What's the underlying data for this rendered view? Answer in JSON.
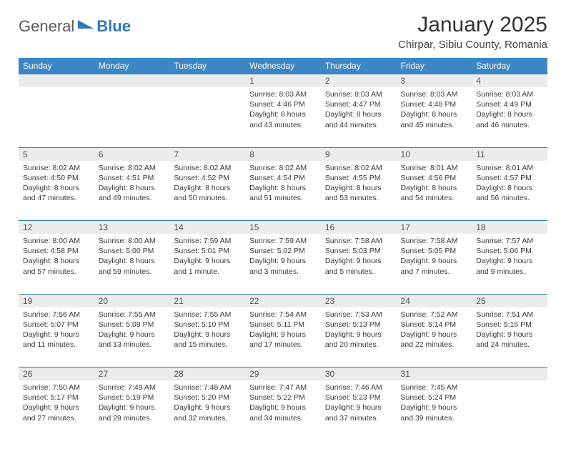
{
  "brand": {
    "part1": "General",
    "part2": "Blue"
  },
  "header": {
    "month_title": "January 2025",
    "location": "Chirpar, Sibiu County, Romania"
  },
  "style": {
    "header_bg": "#3d86c6",
    "header_text": "#ffffff",
    "rule_color": "#2f78b7",
    "daynum_bg": "#ececec",
    "body_text": "#3a3a3a",
    "title_fontsize": 30,
    "location_fontsize": 15,
    "dayhead_fontsize": 12,
    "cell_fontsize": 10.5
  },
  "day_names": [
    "Sunday",
    "Monday",
    "Tuesday",
    "Wednesday",
    "Thursday",
    "Friday",
    "Saturday"
  ],
  "weeks": [
    [
      null,
      null,
      null,
      {
        "n": "1",
        "sr": "8:03 AM",
        "ss": "4:46 PM",
        "dl": "8 hours and 43 minutes."
      },
      {
        "n": "2",
        "sr": "8:03 AM",
        "ss": "4:47 PM",
        "dl": "8 hours and 44 minutes."
      },
      {
        "n": "3",
        "sr": "8:03 AM",
        "ss": "4:48 PM",
        "dl": "8 hours and 45 minutes."
      },
      {
        "n": "4",
        "sr": "8:03 AM",
        "ss": "4:49 PM",
        "dl": "8 hours and 46 minutes."
      }
    ],
    [
      {
        "n": "5",
        "sr": "8:02 AM",
        "ss": "4:50 PM",
        "dl": "8 hours and 47 minutes."
      },
      {
        "n": "6",
        "sr": "8:02 AM",
        "ss": "4:51 PM",
        "dl": "8 hours and 49 minutes."
      },
      {
        "n": "7",
        "sr": "8:02 AM",
        "ss": "4:52 PM",
        "dl": "8 hours and 50 minutes."
      },
      {
        "n": "8",
        "sr": "8:02 AM",
        "ss": "4:54 PM",
        "dl": "8 hours and 51 minutes."
      },
      {
        "n": "9",
        "sr": "8:02 AM",
        "ss": "4:55 PM",
        "dl": "8 hours and 53 minutes."
      },
      {
        "n": "10",
        "sr": "8:01 AM",
        "ss": "4:56 PM",
        "dl": "8 hours and 54 minutes."
      },
      {
        "n": "11",
        "sr": "8:01 AM",
        "ss": "4:57 PM",
        "dl": "8 hours and 56 minutes."
      }
    ],
    [
      {
        "n": "12",
        "sr": "8:00 AM",
        "ss": "4:58 PM",
        "dl": "8 hours and 57 minutes."
      },
      {
        "n": "13",
        "sr": "8:00 AM",
        "ss": "5:00 PM",
        "dl": "8 hours and 59 minutes."
      },
      {
        "n": "14",
        "sr": "7:59 AM",
        "ss": "5:01 PM",
        "dl": "9 hours and 1 minute."
      },
      {
        "n": "15",
        "sr": "7:59 AM",
        "ss": "5:02 PM",
        "dl": "9 hours and 3 minutes."
      },
      {
        "n": "16",
        "sr": "7:58 AM",
        "ss": "5:03 PM",
        "dl": "9 hours and 5 minutes."
      },
      {
        "n": "17",
        "sr": "7:58 AM",
        "ss": "5:05 PM",
        "dl": "9 hours and 7 minutes."
      },
      {
        "n": "18",
        "sr": "7:57 AM",
        "ss": "5:06 PM",
        "dl": "9 hours and 9 minutes."
      }
    ],
    [
      {
        "n": "19",
        "sr": "7:56 AM",
        "ss": "5:07 PM",
        "dl": "9 hours and 11 minutes."
      },
      {
        "n": "20",
        "sr": "7:55 AM",
        "ss": "5:09 PM",
        "dl": "9 hours and 13 minutes."
      },
      {
        "n": "21",
        "sr": "7:55 AM",
        "ss": "5:10 PM",
        "dl": "9 hours and 15 minutes."
      },
      {
        "n": "22",
        "sr": "7:54 AM",
        "ss": "5:11 PM",
        "dl": "9 hours and 17 minutes."
      },
      {
        "n": "23",
        "sr": "7:53 AM",
        "ss": "5:13 PM",
        "dl": "9 hours and 20 minutes."
      },
      {
        "n": "24",
        "sr": "7:52 AM",
        "ss": "5:14 PM",
        "dl": "9 hours and 22 minutes."
      },
      {
        "n": "25",
        "sr": "7:51 AM",
        "ss": "5:16 PM",
        "dl": "9 hours and 24 minutes."
      }
    ],
    [
      {
        "n": "26",
        "sr": "7:50 AM",
        "ss": "5:17 PM",
        "dl": "9 hours and 27 minutes."
      },
      {
        "n": "27",
        "sr": "7:49 AM",
        "ss": "5:19 PM",
        "dl": "9 hours and 29 minutes."
      },
      {
        "n": "28",
        "sr": "7:48 AM",
        "ss": "5:20 PM",
        "dl": "9 hours and 32 minutes."
      },
      {
        "n": "29",
        "sr": "7:47 AM",
        "ss": "5:22 PM",
        "dl": "9 hours and 34 minutes."
      },
      {
        "n": "30",
        "sr": "7:46 AM",
        "ss": "5:23 PM",
        "dl": "9 hours and 37 minutes."
      },
      {
        "n": "31",
        "sr": "7:45 AM",
        "ss": "5:24 PM",
        "dl": "9 hours and 39 minutes."
      },
      null
    ]
  ],
  "labels": {
    "sunrise": "Sunrise:",
    "sunset": "Sunset:",
    "daylight": "Daylight:"
  }
}
